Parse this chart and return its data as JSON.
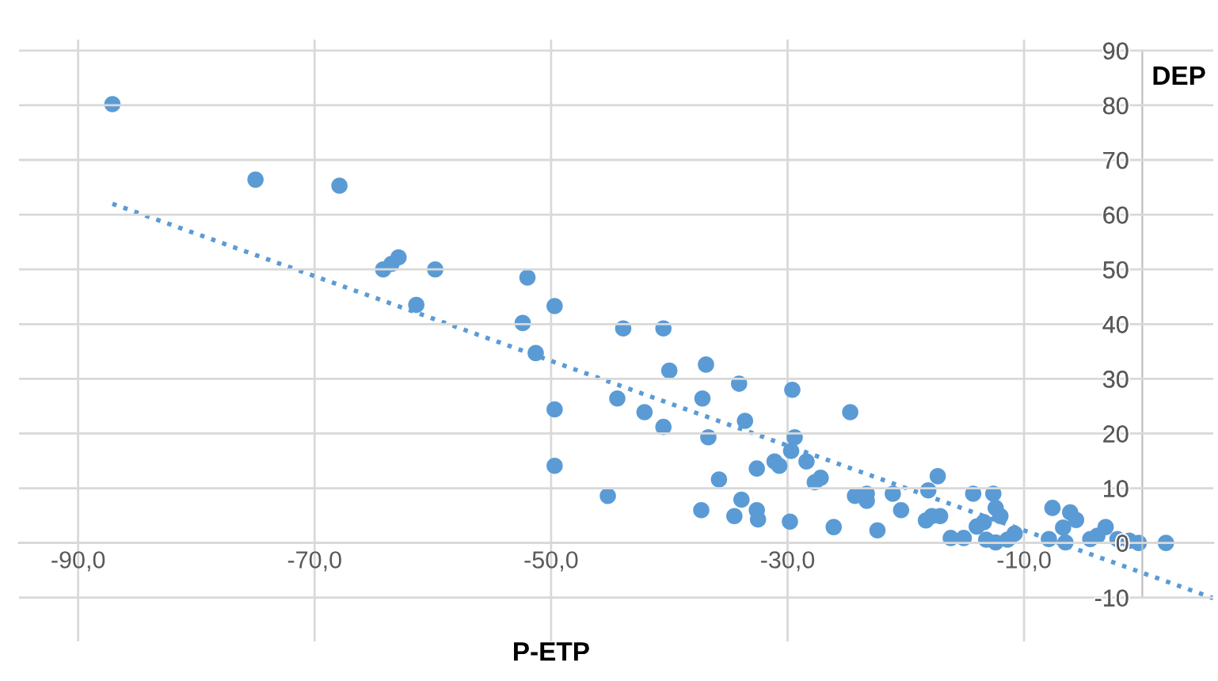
{
  "chart_data": {
    "type": "scatter",
    "xlabel": "P-ETP",
    "ylabel": "DEP",
    "xlim": [
      -95,
      6
    ],
    "ylim": [
      -18,
      92
    ],
    "xticks": [
      {
        "value": -90,
        "label": "-90,0"
      },
      {
        "value": -70,
        "label": "-70,0"
      },
      {
        "value": -50,
        "label": "-50,0"
      },
      {
        "value": -30,
        "label": "-30,0"
      },
      {
        "value": -10,
        "label": "-10,0"
      }
    ],
    "yticks": [
      -10,
      0,
      10,
      20,
      30,
      40,
      50,
      60,
      70,
      80,
      90
    ],
    "grid": true,
    "marker": "circle",
    "series": [
      {
        "color": "#5b9bd5",
        "x": [
          -87.1,
          -75.0,
          -67.9,
          -64.2,
          -63.5,
          -62.9,
          -59.8,
          -61.4,
          -52.0,
          -52.4,
          -49.7,
          -51.3,
          -49.7,
          -49.7,
          -45.2,
          -43.9,
          -44.4,
          -42.1,
          -40.5,
          -40.0,
          -40.5,
          -36.9,
          -37.2,
          -36.7,
          -35.8,
          -37.3,
          -34.1,
          -33.6,
          -33.9,
          -34.5,
          -32.6,
          -32.5,
          -32.6,
          -31.1,
          -30.7,
          -29.6,
          -29.4,
          -29.7,
          -28.4,
          -29.8,
          -27.7,
          -27.2,
          -26.1,
          -24.7,
          -24.3,
          -23.3,
          -23.3,
          -22.4,
          -21.1,
          -20.4,
          -18.1,
          -17.3,
          -18.3,
          -17.8,
          -17.1,
          -16.2,
          -15.1,
          -14.3,
          -14.0,
          -13.4,
          -12.6,
          -12.4,
          -12.0,
          -13.2,
          -12.4,
          -11.4,
          -10.8,
          -7.6,
          -7.9,
          -6.5,
          -6.1,
          -5.6,
          -4.4,
          -3.1,
          -2.1,
          -1.1,
          -0.3,
          2.0,
          -6.7,
          -3.8
        ],
        "values": [
          80.2,
          66.4,
          65.3,
          50.0,
          51.0,
          52.2,
          50.0,
          43.5,
          48.5,
          40.2,
          43.3,
          34.7,
          24.4,
          14.1,
          8.6,
          39.2,
          26.4,
          23.9,
          39.2,
          31.5,
          21.2,
          32.6,
          26.4,
          19.3,
          11.6,
          6.0,
          29.1,
          22.3,
          7.9,
          4.9,
          6.0,
          4.3,
          13.6,
          14.9,
          14.1,
          28.0,
          19.3,
          16.8,
          14.9,
          3.9,
          11.1,
          11.9,
          2.9,
          23.9,
          8.6,
          9.0,
          7.7,
          2.3,
          9.0,
          6.0,
          9.6,
          12.2,
          4.1,
          4.9,
          4.9,
          0.9,
          0.9,
          9.0,
          3.0,
          3.8,
          9.0,
          6.4,
          4.9,
          0.6,
          0.1,
          0.6,
          1.7,
          6.4,
          0.7,
          0.1,
          5.6,
          4.2,
          0.7,
          2.9,
          0.7,
          0.4,
          0.0,
          0.0,
          2.8,
          1.3
        ]
      },
      {
        "type": "line",
        "color": "#5b9bd5",
        "line_style": "dotted",
        "marker": "none",
        "x": [
          -87.1,
          6
        ],
        "values": [
          62,
          -10.1
        ]
      }
    ]
  }
}
